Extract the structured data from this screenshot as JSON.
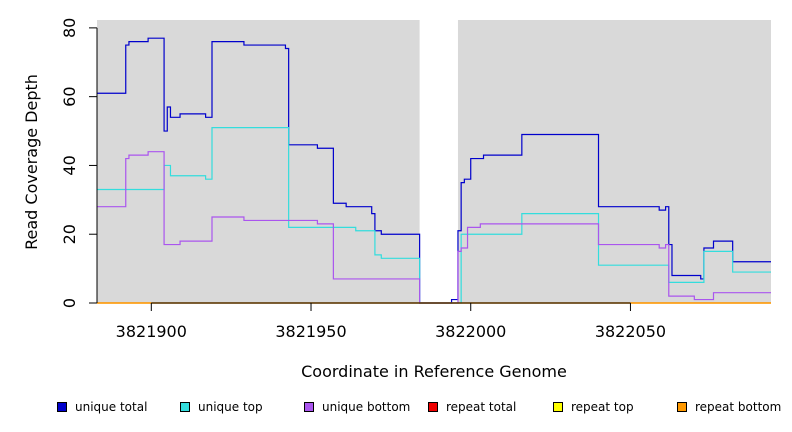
{
  "chart_data": {
    "type": "line",
    "title": "",
    "xlabel": "Coordinate in Reference Genome",
    "ylabel": "Read Coverage Depth",
    "xlim": [
      3821883,
      3822094
    ],
    "ylim": [
      0,
      82
    ],
    "x_ticks": [
      3821900,
      3821950,
      3822000,
      3822050
    ],
    "x_tick_labels": [
      "3821900",
      "3821950",
      "3822000",
      "3822050"
    ],
    "y_ticks": [
      0,
      20,
      40,
      60,
      80
    ],
    "y_tick_labels": [
      "0",
      "20",
      "40",
      "60",
      "80"
    ],
    "gap_region": [
      3821984,
      3821996
    ],
    "legend_position": "bottom",
    "series": [
      {
        "name": "unique total",
        "color": "#0000cc",
        "step": true,
        "points": [
          [
            3821883,
            61
          ],
          [
            3821892,
            61
          ],
          [
            3821892,
            75
          ],
          [
            3821893,
            75
          ],
          [
            3821893,
            76
          ],
          [
            3821899,
            76
          ],
          [
            3821899,
            77
          ],
          [
            3821904,
            77
          ],
          [
            3821904,
            50
          ],
          [
            3821905,
            50
          ],
          [
            3821905,
            57
          ],
          [
            3821906,
            57
          ],
          [
            3821906,
            54
          ],
          [
            3821909,
            54
          ],
          [
            3821909,
            55
          ],
          [
            3821917,
            55
          ],
          [
            3821917,
            54
          ],
          [
            3821919,
            54
          ],
          [
            3821919,
            76
          ],
          [
            3821929,
            76
          ],
          [
            3821929,
            75
          ],
          [
            3821942,
            75
          ],
          [
            3821942,
            74
          ],
          [
            3821943,
            74
          ],
          [
            3821943,
            46
          ],
          [
            3821952,
            46
          ],
          [
            3821952,
            45
          ],
          [
            3821957,
            45
          ],
          [
            3821957,
            29
          ],
          [
            3821961,
            29
          ],
          [
            3821961,
            28
          ],
          [
            3821969,
            28
          ],
          [
            3821969,
            26
          ],
          [
            3821970,
            26
          ],
          [
            3821970,
            21
          ],
          [
            3821972,
            21
          ],
          [
            3821972,
            20
          ],
          [
            3821984,
            20
          ],
          [
            3821984,
            0
          ],
          [
            3821994,
            0
          ],
          [
            3821994,
            1
          ],
          [
            3821996,
            1
          ],
          [
            3821996,
            21
          ],
          [
            3821997,
            21
          ],
          [
            3821997,
            35
          ],
          [
            3821998,
            35
          ],
          [
            3821998,
            36
          ],
          [
            3822000,
            36
          ],
          [
            3822000,
            42
          ],
          [
            3822004,
            42
          ],
          [
            3822004,
            43
          ],
          [
            3822016,
            43
          ],
          [
            3822016,
            49
          ],
          [
            3822040,
            49
          ],
          [
            3822040,
            28
          ],
          [
            3822059,
            28
          ],
          [
            3822059,
            27
          ],
          [
            3822061,
            27
          ],
          [
            3822061,
            28
          ],
          [
            3822062,
            28
          ],
          [
            3822062,
            17
          ],
          [
            3822063,
            17
          ],
          [
            3822063,
            8
          ],
          [
            3822072,
            8
          ],
          [
            3822072,
            7
          ],
          [
            3822073,
            7
          ],
          [
            3822073,
            16
          ],
          [
            3822076,
            16
          ],
          [
            3822076,
            18
          ],
          [
            3822082,
            18
          ],
          [
            3822082,
            12
          ],
          [
            3822094,
            12
          ]
        ]
      },
      {
        "name": "unique top",
        "color": "#33dddd",
        "step": true,
        "points": [
          [
            3821883,
            33
          ],
          [
            3821904,
            33
          ],
          [
            3821904,
            40
          ],
          [
            3821906,
            40
          ],
          [
            3821906,
            37
          ],
          [
            3821917,
            37
          ],
          [
            3821917,
            36
          ],
          [
            3821919,
            36
          ],
          [
            3821919,
            51
          ],
          [
            3821943,
            51
          ],
          [
            3821943,
            22
          ],
          [
            3821964,
            22
          ],
          [
            3821964,
            21
          ],
          [
            3821970,
            21
          ],
          [
            3821970,
            14
          ],
          [
            3821972,
            14
          ],
          [
            3821972,
            13
          ],
          [
            3821984,
            13
          ],
          [
            3821984,
            0
          ],
          [
            3821997,
            0
          ],
          [
            3821997,
            20
          ],
          [
            3822016,
            20
          ],
          [
            3822016,
            26
          ],
          [
            3822040,
            26
          ],
          [
            3822040,
            11
          ],
          [
            3822062,
            11
          ],
          [
            3822062,
            6
          ],
          [
            3822073,
            6
          ],
          [
            3822073,
            15
          ],
          [
            3822082,
            15
          ],
          [
            3822082,
            9
          ],
          [
            3822094,
            9
          ]
        ]
      },
      {
        "name": "unique bottom",
        "color": "#aa55ee",
        "step": true,
        "points": [
          [
            3821883,
            28
          ],
          [
            3821892,
            28
          ],
          [
            3821892,
            42
          ],
          [
            3821893,
            42
          ],
          [
            3821893,
            43
          ],
          [
            3821899,
            43
          ],
          [
            3821899,
            44
          ],
          [
            3821904,
            44
          ],
          [
            3821904,
            17
          ],
          [
            3821909,
            17
          ],
          [
            3821909,
            18
          ],
          [
            3821919,
            18
          ],
          [
            3821919,
            25
          ],
          [
            3821929,
            25
          ],
          [
            3821929,
            24
          ],
          [
            3821952,
            24
          ],
          [
            3821952,
            23
          ],
          [
            3821957,
            23
          ],
          [
            3821957,
            7
          ],
          [
            3821984,
            7
          ],
          [
            3821984,
            0
          ],
          [
            3821996,
            0
          ],
          [
            3821996,
            15
          ],
          [
            3821997,
            15
          ],
          [
            3821997,
            16
          ],
          [
            3821999,
            16
          ],
          [
            3821999,
            22
          ],
          [
            3822003,
            22
          ],
          [
            3822003,
            23
          ],
          [
            3822040,
            23
          ],
          [
            3822040,
            17
          ],
          [
            3822059,
            17
          ],
          [
            3822059,
            16
          ],
          [
            3822061,
            16
          ],
          [
            3822061,
            17
          ],
          [
            3822062,
            17
          ],
          [
            3822062,
            2
          ],
          [
            3822070,
            2
          ],
          [
            3822070,
            1
          ],
          [
            3822076,
            1
          ],
          [
            3822076,
            3
          ],
          [
            3822094,
            3
          ]
        ]
      },
      {
        "name": "repeat total",
        "color": "#ee0000",
        "step": true,
        "points": [
          [
            3821883,
            0
          ],
          [
            3822094,
            0
          ]
        ]
      },
      {
        "name": "repeat top",
        "color": "#ffff00",
        "step": true,
        "points": [
          [
            3821883,
            0
          ],
          [
            3822094,
            0
          ]
        ]
      },
      {
        "name": "repeat bottom",
        "color": "#ff9900",
        "step": true,
        "points": [
          [
            3821883,
            0
          ],
          [
            3822094,
            0
          ]
        ]
      }
    ]
  },
  "colors": {
    "plot_background": "#d9d9d9",
    "gap_fill": "#ffffff"
  }
}
